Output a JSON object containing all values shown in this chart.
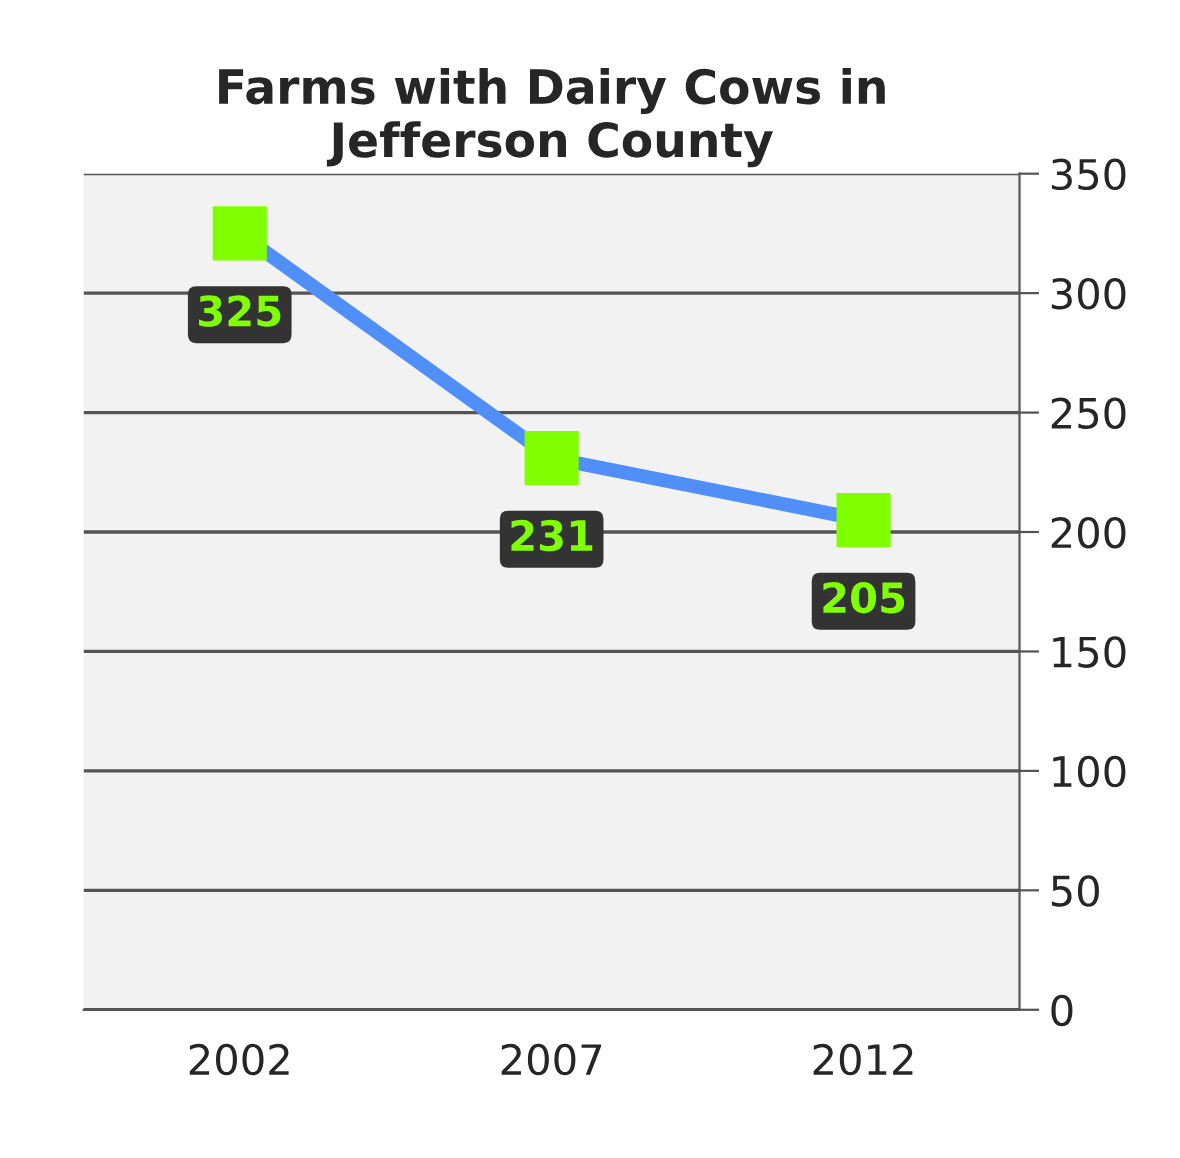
{
  "chart_data": {
    "type": "line",
    "title": "Farms with Dairy Cows in\nJefferson County",
    "categories": [
      "2002",
      "2007",
      "2012"
    ],
    "series": [
      {
        "color": "#4f8ff7",
        "colors": [
          "#80ff00",
          "#80ff00",
          "#80ff00"
        ],
        "values": [
          325,
          231,
          205
        ]
      }
    ],
    "ylim": [
      0,
      350
    ],
    "yticks": [
      0,
      50,
      100,
      150,
      200,
      250,
      300,
      350
    ],
    "grid": "y",
    "marker": "square",
    "line_style": "solid",
    "data_labels": true
  }
}
